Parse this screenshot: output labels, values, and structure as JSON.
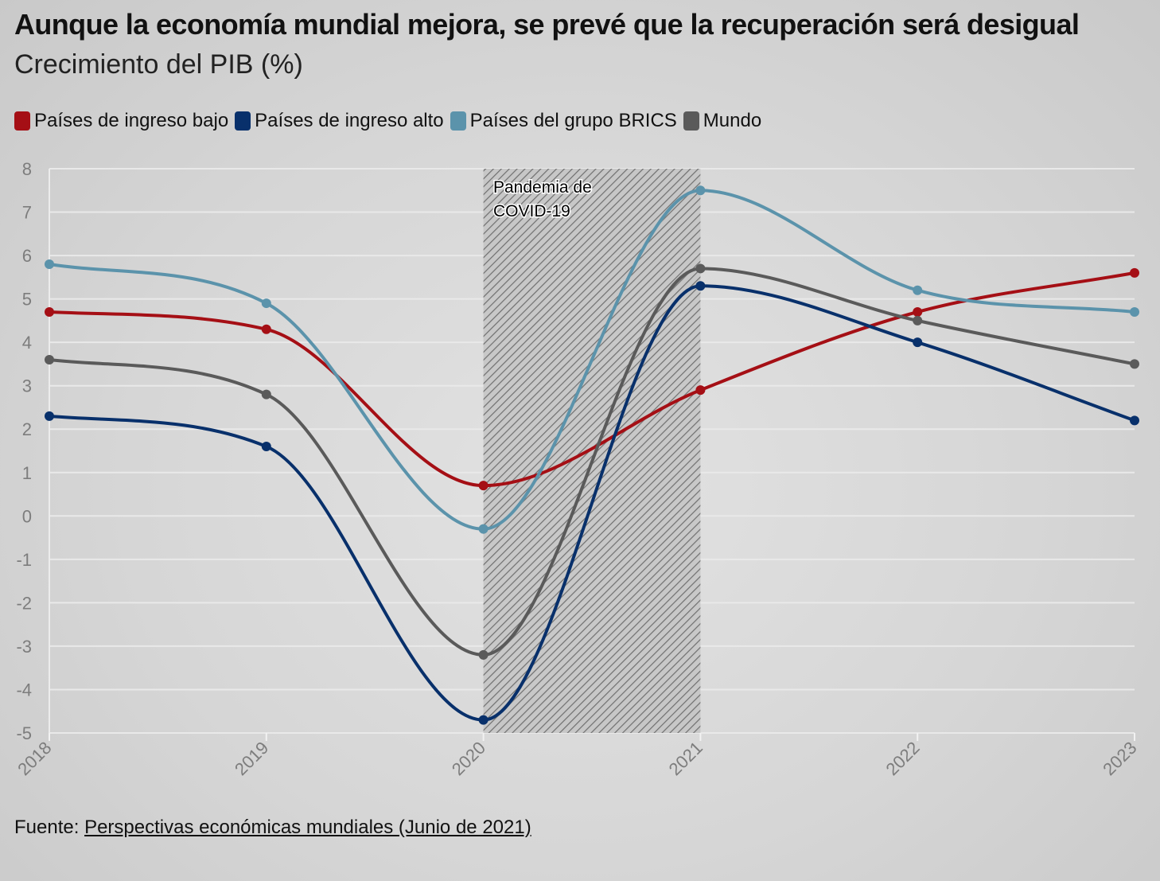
{
  "title": "Aunque la economía mundial mejora, se prevé que la recuperación será desigual",
  "subtitle": "Crecimiento del PIB (%)",
  "legend": [
    {
      "label": "Países de ingreso bajo",
      "color": "#a50f15"
    },
    {
      "label": "Países de ingreso alto",
      "color": "#08306b"
    },
    {
      "label": "Países del grupo BRICS",
      "color": "#5b93ab"
    },
    {
      "label": "Mundo",
      "color": "#5a5a5a"
    }
  ],
  "annotation": {
    "line1": "Pandemia de",
    "line2": "COVID-19"
  },
  "source": {
    "prefix": "Fuente: ",
    "link_text": "Perspectivas económicas mundiales (Junio de 2021)"
  },
  "chart_data": {
    "type": "line",
    "title": "Aunque la economía mundial mejora, se prevé que la recuperación será desigual",
    "subtitle": "Crecimiento del PIB (%)",
    "categories": [
      "2018",
      "2019",
      "2020",
      "2021",
      "2022",
      "2023"
    ],
    "yticks": [
      "8",
      "7",
      "6",
      "5",
      "4",
      "3",
      "2",
      "1",
      "0",
      "-1",
      "-2",
      "-3",
      "-4",
      "-5"
    ],
    "ylim": [
      -5,
      8
    ],
    "grid": true,
    "legend_position": "top-left",
    "shaded_region": {
      "from": "2020",
      "to": "2021",
      "label": "Pandemia de COVID-19"
    },
    "series": [
      {
        "name": "Países de ingreso bajo",
        "color": "#a50f15",
        "values": [
          4.7,
          4.3,
          0.7,
          2.9,
          4.7,
          5.6
        ]
      },
      {
        "name": "Países de ingreso alto",
        "color": "#08306b",
        "values": [
          2.3,
          1.6,
          -4.7,
          5.3,
          4.0,
          2.2
        ]
      },
      {
        "name": "Países del grupo BRICS",
        "color": "#5b93ab",
        "values": [
          5.8,
          4.9,
          -0.3,
          7.5,
          5.2,
          4.7
        ]
      },
      {
        "name": "Mundo",
        "color": "#5a5a5a",
        "values": [
          3.6,
          2.8,
          -3.2,
          5.7,
          4.5,
          3.5
        ]
      }
    ]
  }
}
